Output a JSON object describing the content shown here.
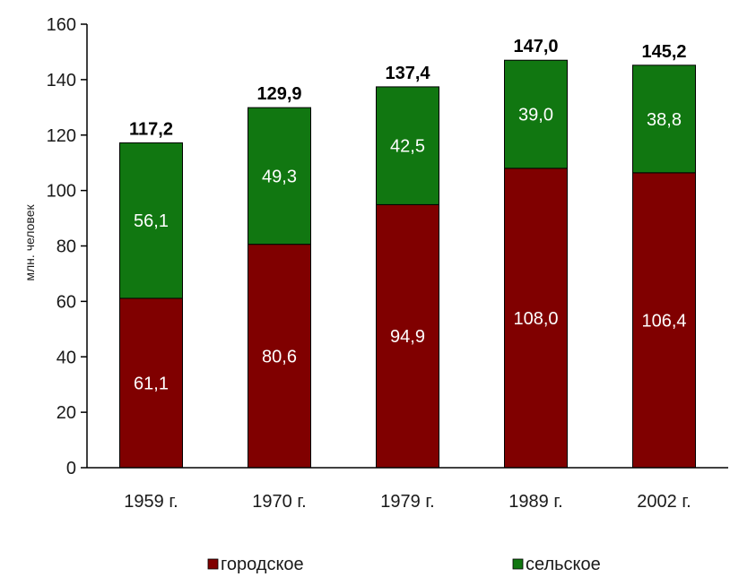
{
  "chart_data": {
    "type": "bar",
    "stacked": true,
    "ylabel": "млн. человек",
    "ylim": [
      0,
      160
    ],
    "yticks": [
      0,
      20,
      40,
      60,
      80,
      100,
      120,
      140,
      160
    ],
    "categories": [
      "1959 г.",
      "1970 г.",
      "1979 г.",
      "1989 г.",
      "2002 г."
    ],
    "series": [
      {
        "name": "городское",
        "color": "#800000",
        "values": [
          61.1,
          80.6,
          94.9,
          108.0,
          106.4
        ],
        "labels": [
          "61,1",
          "80,6",
          "94,9",
          "108,0",
          "106,4"
        ]
      },
      {
        "name": "сельское",
        "color": "#117711",
        "values": [
          56.1,
          49.3,
          42.5,
          39.0,
          38.8
        ],
        "labels": [
          "56,1",
          "49,3",
          "42,5",
          "39,0",
          "38,8"
        ]
      }
    ],
    "totals": [
      117.2,
      129.9,
      137.4,
      147.0,
      145.2
    ],
    "total_labels": [
      "117,2",
      "129,9",
      "137,4",
      "147,0",
      "145,2"
    ],
    "legend_position": "bottom",
    "grid": false
  }
}
